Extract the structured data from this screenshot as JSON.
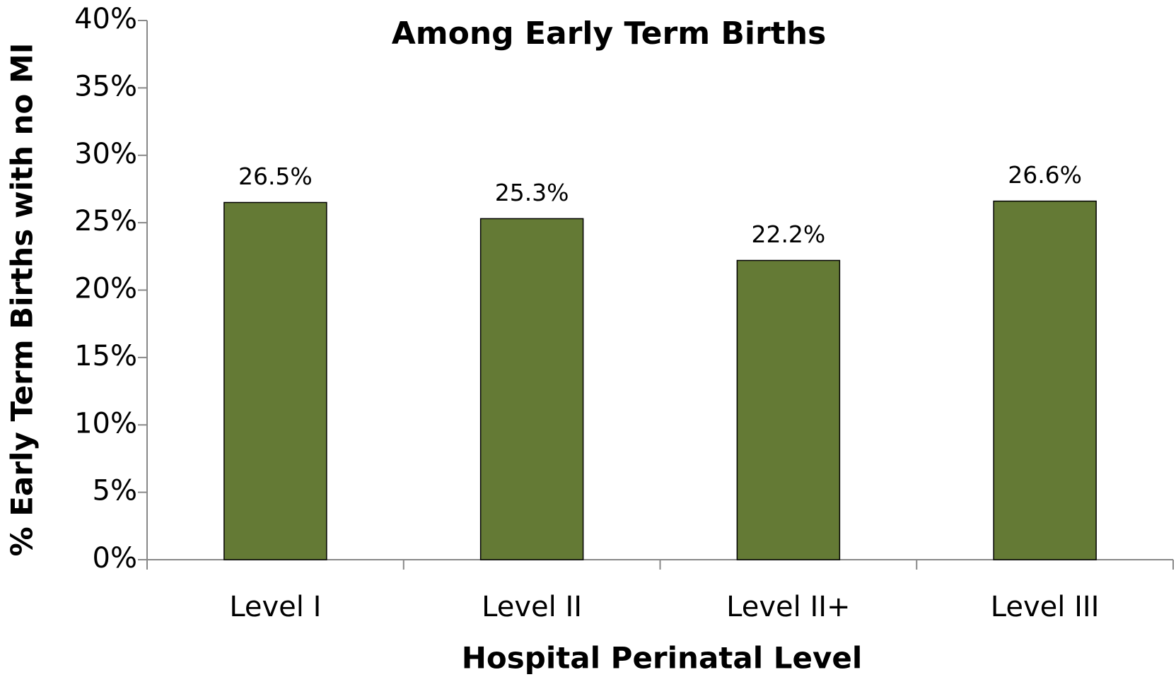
{
  "chart_data": {
    "type": "bar",
    "title": "Among Early Term Births",
    "x_label": "Hospital Perinatal Level",
    "y_label": "% Early Term Births with no MI",
    "categories": [
      "Level I",
      "Level II",
      "Level II+",
      "Level III"
    ],
    "values": [
      26.5,
      25.3,
      22.2,
      26.6
    ],
    "value_labels": [
      "26.5%",
      "25.3%",
      "22.2%",
      "26.6%"
    ],
    "color": "#647a35",
    "ylim": [
      0,
      40
    ],
    "yticks": [
      {
        "value": 0,
        "label": "0%"
      },
      {
        "value": 5,
        "label": "5%"
      },
      {
        "value": 10,
        "label": "10%"
      },
      {
        "value": 15,
        "label": "15%"
      },
      {
        "value": 20,
        "label": "20%"
      },
      {
        "value": 25,
        "label": "25%"
      },
      {
        "value": 30,
        "label": "30%"
      },
      {
        "value": 35,
        "label": "35%"
      },
      {
        "value": 40,
        "label": "40%"
      }
    ],
    "grid": false
  }
}
